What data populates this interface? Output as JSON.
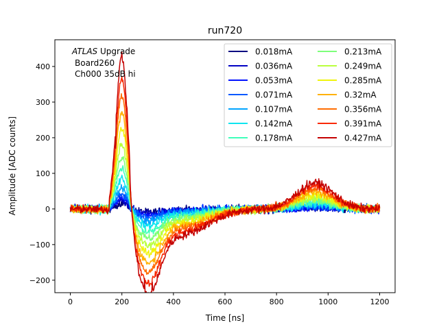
{
  "chart_data": {
    "type": "line",
    "title": "run720",
    "xlabel": "Time [ns]",
    "ylabel": "Amplitude [ADC counts]",
    "xlim": [
      -60,
      1260
    ],
    "ylim": [
      -235,
      475
    ],
    "xticks": [
      0,
      200,
      400,
      600,
      800,
      1000,
      1200
    ],
    "yticks": [
      -200,
      -100,
      0,
      100,
      200,
      300,
      400
    ],
    "grid": false,
    "legend_placement": "top-right",
    "legend_columns": 2,
    "annotation": {
      "italic": "ATLAS",
      "line1_rest": " Upgrade",
      "line2": "Board260",
      "line3": "Ch000 35dB hi"
    },
    "waveform_shape": {
      "x_range": [
        0,
        1200
      ],
      "pulse_peak_x": 200,
      "pulse_peak_y_per_mA": 440,
      "undershoot_min_x": 300,
      "undershoot_min_y_per_mA": -205,
      "late_bump_x": 950,
      "late_bump_y_per_mA": 38
    },
    "series": [
      {
        "name": "0.018mA",
        "current": 0.018,
        "color": "#000080"
      },
      {
        "name": "0.036mA",
        "current": 0.036,
        "color": "#0000c4"
      },
      {
        "name": "0.053mA",
        "current": 0.053,
        "color": "#0010ff"
      },
      {
        "name": "0.071mA",
        "current": 0.071,
        "color": "#0058ff"
      },
      {
        "name": "0.107mA",
        "current": 0.107,
        "color": "#00a4ff"
      },
      {
        "name": "0.142mA",
        "current": 0.142,
        "color": "#0de5f0"
      },
      {
        "name": "0.178mA",
        "current": 0.178,
        "color": "#3dffba"
      },
      {
        "name": "0.213mA",
        "current": 0.213,
        "color": "#7dff7a"
      },
      {
        "name": "0.249mA",
        "current": 0.249,
        "color": "#baff3d"
      },
      {
        "name": "0.285mA",
        "current": 0.285,
        "color": "#f0f40a"
      },
      {
        "name": "0.32mA",
        "current": 0.32,
        "color": "#ffb100"
      },
      {
        "name": "0.356mA",
        "current": 0.356,
        "color": "#ff6c00"
      },
      {
        "name": "0.391mA",
        "current": 0.391,
        "color": "#f92800"
      },
      {
        "name": "0.427mA",
        "current": 0.427,
        "color": "#c40000"
      }
    ]
  }
}
